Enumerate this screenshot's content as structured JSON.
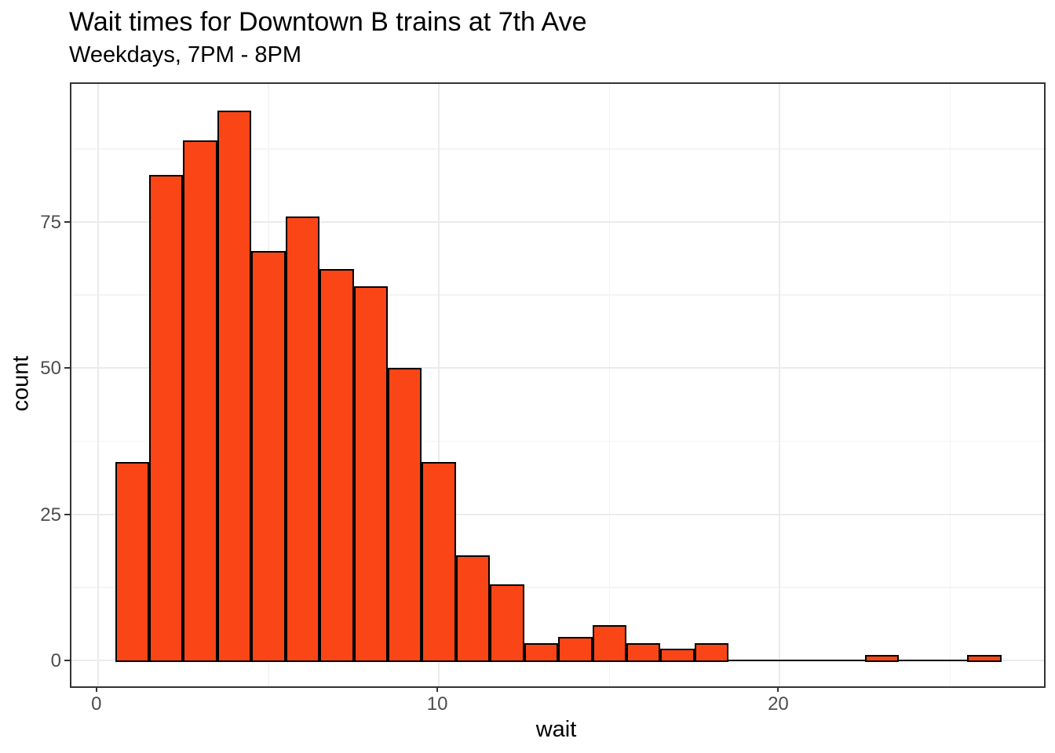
{
  "header": {
    "title": "Wait times for Downtown B trains at 7th Ave",
    "subtitle": "Weekdays, 7PM - 8PM"
  },
  "chart_data": {
    "type": "bar",
    "variant": "histogram",
    "title": "Wait times for Downtown B trains at 7th Ave",
    "subtitle": "Weekdays, 7PM - 8PM",
    "xlabel": "wait",
    "ylabel": "count",
    "binwidth": 1,
    "bin_centers": [
      1,
      2,
      3,
      4,
      5,
      6,
      7,
      8,
      9,
      10,
      11,
      12,
      13,
      14,
      15,
      16,
      17,
      18,
      19,
      20,
      21,
      22,
      23,
      24,
      25,
      26
    ],
    "counts": [
      34,
      83,
      89,
      94,
      70,
      76,
      67,
      64,
      50,
      34,
      18,
      13,
      3,
      4,
      6,
      3,
      2,
      3,
      0,
      0,
      0,
      0,
      1,
      0,
      0,
      1
    ],
    "x_major_ticks": [
      0,
      10,
      20
    ],
    "x_minor_gridlines": [
      5,
      15,
      25
    ],
    "y_major_ticks": [
      0,
      25,
      50,
      75
    ],
    "y_minor_gridlines": [
      12.5,
      37.5,
      62.5,
      87.5
    ],
    "xlim": [
      -0.78,
      27.75
    ],
    "ylim": [
      -4.4,
      98.6
    ],
    "grid": "major+minor",
    "legend_position": "none",
    "colors": {
      "bar_fill": "#FA4616",
      "bar_stroke": "#000000",
      "panel_border": "#333333",
      "grid_major": "#EBEBEB",
      "grid_minor": "#F4F4F4",
      "tick_label": "#4D4D4D",
      "text": "#000000",
      "background": "#FFFFFF"
    }
  }
}
